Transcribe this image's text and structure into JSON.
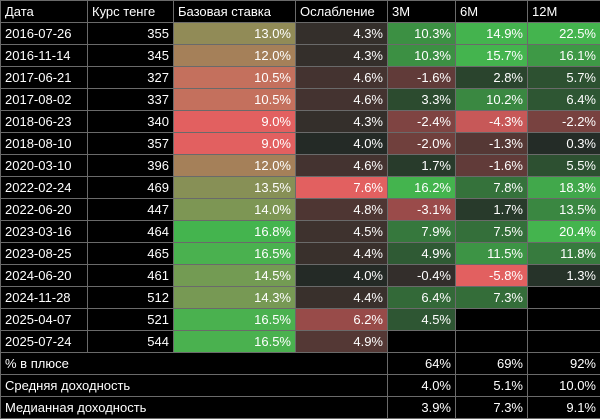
{
  "headers": [
    "Дата",
    "Курс тенге",
    "Базовая ставка",
    "Ослабление",
    "3M",
    "6M",
    "12M"
  ],
  "rows": [
    {
      "date": "2016-07-26",
      "rate": "355",
      "base": "13.0%",
      "weak": "4.3%",
      "m3": "10.3%",
      "m6": "14.9%",
      "m12": "22.5%"
    },
    {
      "date": "2016-11-14",
      "rate": "345",
      "base": "12.0%",
      "weak": "4.3%",
      "m3": "10.3%",
      "m6": "15.7%",
      "m12": "16.1%"
    },
    {
      "date": "2017-06-21",
      "rate": "327",
      "base": "10.5%",
      "weak": "4.6%",
      "m3": "-1.6%",
      "m6": "2.8%",
      "m12": "5.7%"
    },
    {
      "date": "2017-08-02",
      "rate": "337",
      "base": "10.5%",
      "weak": "4.6%",
      "m3": "3.3%",
      "m6": "10.2%",
      "m12": "6.4%"
    },
    {
      "date": "2018-06-23",
      "rate": "340",
      "base": "9.0%",
      "weak": "4.3%",
      "m3": "-2.4%",
      "m6": "-4.3%",
      "m12": "-2.2%"
    },
    {
      "date": "2018-08-10",
      "rate": "357",
      "base": "9.0%",
      "weak": "4.0%",
      "m3": "-2.0%",
      "m6": "-1.3%",
      "m12": "0.3%"
    },
    {
      "date": "2020-03-10",
      "rate": "396",
      "base": "12.0%",
      "weak": "4.6%",
      "m3": "1.7%",
      "m6": "-1.6%",
      "m12": "5.5%"
    },
    {
      "date": "2022-02-24",
      "rate": "469",
      "base": "13.5%",
      "weak": "7.6%",
      "m3": "16.2%",
      "m6": "7.8%",
      "m12": "18.3%"
    },
    {
      "date": "2022-06-20",
      "rate": "447",
      "base": "14.0%",
      "weak": "4.8%",
      "m3": "-3.1%",
      "m6": "1.7%",
      "m12": "13.5%"
    },
    {
      "date": "2023-03-16",
      "rate": "464",
      "base": "16.8%",
      "weak": "4.5%",
      "m3": "7.9%",
      "m6": "7.5%",
      "m12": "20.4%"
    },
    {
      "date": "2023-08-25",
      "rate": "465",
      "base": "16.5%",
      "weak": "4.4%",
      "m3": "4.9%",
      "m6": "11.5%",
      "m12": "11.8%"
    },
    {
      "date": "2024-06-20",
      "rate": "461",
      "base": "14.5%",
      "weak": "4.0%",
      "m3": "-0.4%",
      "m6": "-5.8%",
      "m12": "1.3%"
    },
    {
      "date": "2024-11-28",
      "rate": "512",
      "base": "14.3%",
      "weak": "4.4%",
      "m3": "6.4%",
      "m6": "7.3%",
      "m12": ""
    },
    {
      "date": "2025-04-07",
      "rate": "521",
      "base": "16.5%",
      "weak": "6.2%",
      "m3": "4.5%",
      "m6": "",
      "m12": ""
    },
    {
      "date": "2025-07-24",
      "rate": "544",
      "base": "16.5%",
      "weak": "4.9%",
      "m3": "",
      "m6": "",
      "m12": ""
    }
  ],
  "summary": [
    {
      "label": "% в плюсе",
      "m3": "64%",
      "m6": "69%",
      "m12": "92%"
    },
    {
      "label": "Средняя доходность",
      "m3": "4.0%",
      "m6": "5.1%",
      "m12": "10.0%"
    },
    {
      "label": "Медианная доходность",
      "m3": "3.9%",
      "m6": "7.3%",
      "m12": "9.1%"
    }
  ]
}
